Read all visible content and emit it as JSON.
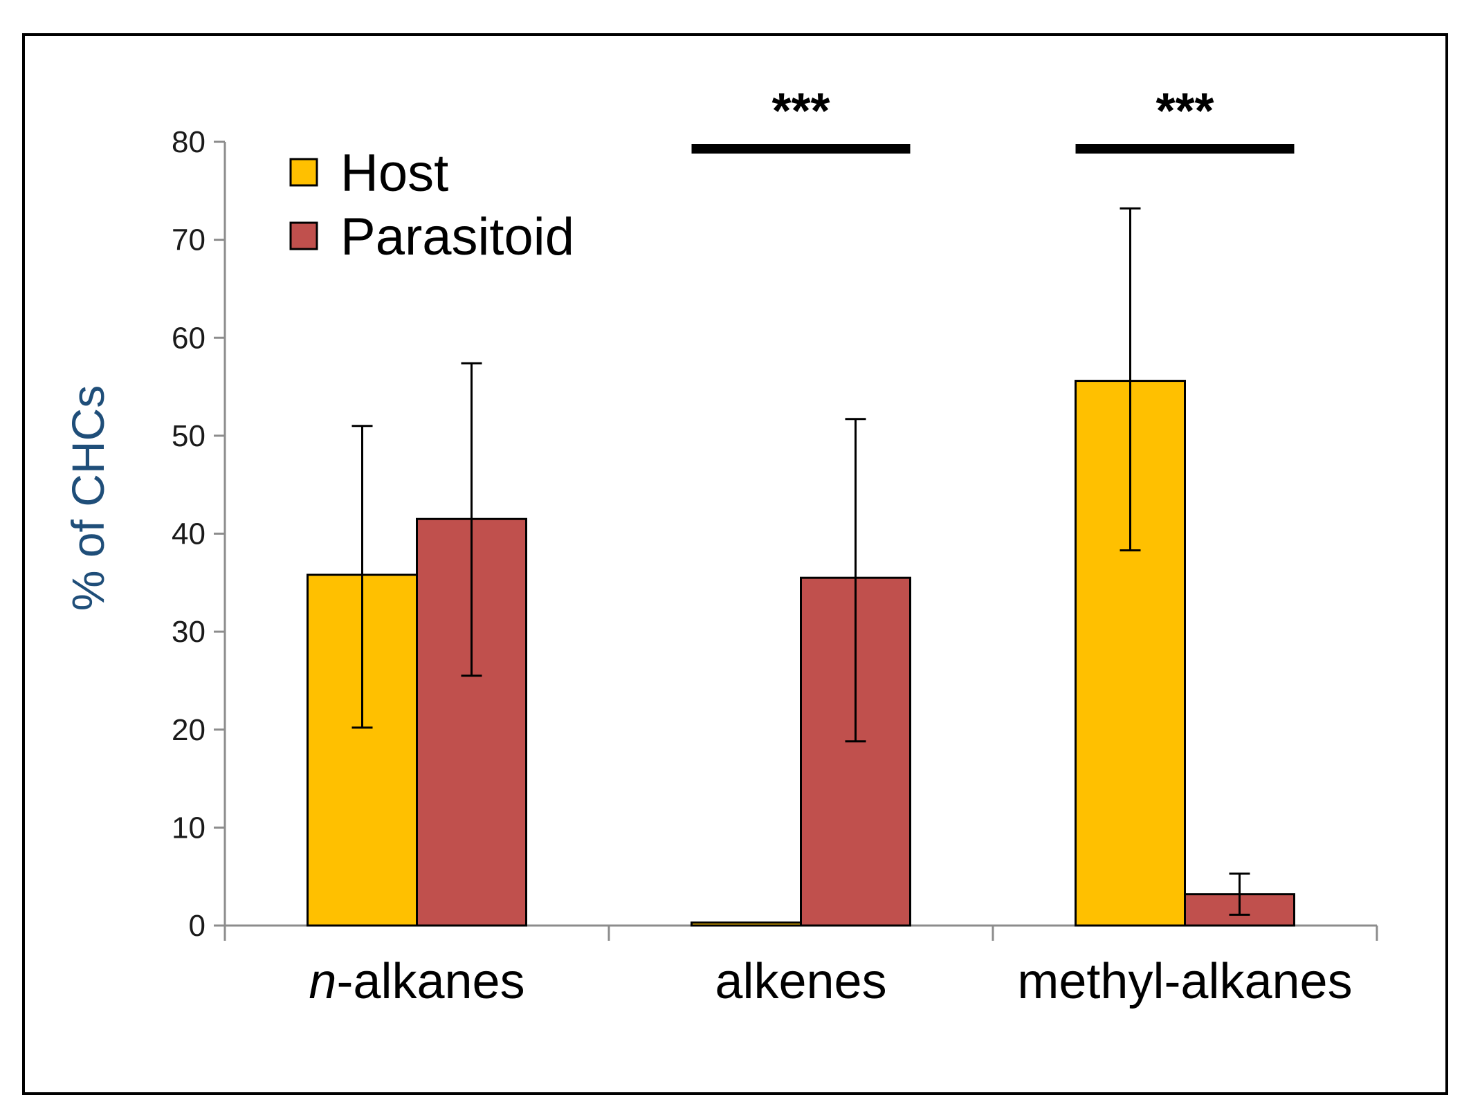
{
  "chart_data": {
    "type": "bar",
    "title": "",
    "xlabel": "",
    "ylabel": "% of CHCs",
    "ylim": [
      0,
      80
    ],
    "yticks": [
      0,
      10,
      20,
      30,
      40,
      50,
      60,
      70,
      80
    ],
    "categories": [
      {
        "prefix": "n",
        "rest": "-alkanes"
      },
      {
        "prefix": "",
        "rest": "alkenes"
      },
      {
        "prefix": "",
        "rest": "methyl-alkanes"
      }
    ],
    "series": [
      {
        "name": "Host",
        "color": "#FFC000",
        "values": [
          35.8,
          0.3,
          55.6
        ],
        "error_low": [
          20.2,
          null,
          38.3
        ],
        "error_high": [
          51.0,
          null,
          73.2
        ]
      },
      {
        "name": "Parasitoid",
        "color": "#C0504D",
        "values": [
          41.5,
          35.5,
          3.2
        ],
        "error_low": [
          25.5,
          18.8,
          1.1
        ],
        "error_high": [
          57.4,
          51.7,
          5.3
        ]
      }
    ],
    "significance": [
      {
        "category_index": 1,
        "label": "***"
      },
      {
        "category_index": 2,
        "label": "***"
      }
    ],
    "legend": {
      "position": "top-left"
    },
    "grid": false
  }
}
